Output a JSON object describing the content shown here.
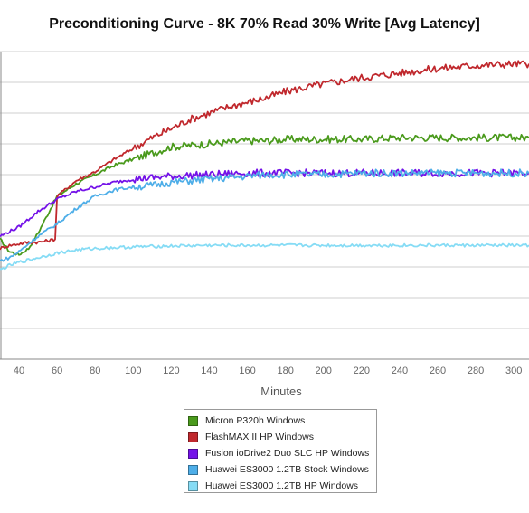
{
  "chart_data": {
    "type": "line",
    "title": "Preconditioning Curve - 8K 70% Read 30% Write [Avg Latency]",
    "xlabel": "Minutes",
    "ylabel": "",
    "x_ticks": [
      40,
      60,
      80,
      100,
      120,
      140,
      160,
      180,
      200,
      220,
      240,
      260,
      280,
      300
    ],
    "xlim": [
      30,
      308
    ],
    "ylim": [
      0,
      10
    ],
    "grid": true,
    "legend_position": "bottom-center",
    "series": [
      {
        "name": "Micron P320h Windows",
        "color": "#4a9a1c",
        "x": [
          30,
          35,
          40,
          45,
          50,
          55,
          60,
          65,
          70,
          80,
          90,
          100,
          110,
          120,
          130,
          140,
          150,
          160,
          170,
          180,
          200,
          220,
          240,
          260,
          280,
          300,
          308
        ],
        "y": [
          3.9,
          3.5,
          3.4,
          3.6,
          4.1,
          4.7,
          5.3,
          5.5,
          5.7,
          6.0,
          6.3,
          6.5,
          6.7,
          6.9,
          6.95,
          7.0,
          7.05,
          7.1,
          7.1,
          7.15,
          7.15,
          7.15,
          7.2,
          7.2,
          7.2,
          7.2,
          7.2
        ]
      },
      {
        "name": "FlashMAX II HP Windows",
        "color": "#c0282d",
        "x": [
          30,
          35,
          40,
          45,
          50,
          55,
          59,
          60,
          65,
          70,
          80,
          90,
          100,
          110,
          120,
          130,
          140,
          150,
          160,
          170,
          180,
          200,
          220,
          240,
          260,
          280,
          300,
          308
        ],
        "y": [
          3.6,
          3.7,
          3.75,
          3.8,
          3.8,
          3.85,
          3.9,
          5.3,
          5.55,
          5.8,
          6.1,
          6.5,
          6.85,
          7.2,
          7.5,
          7.8,
          8.0,
          8.2,
          8.35,
          8.5,
          8.7,
          8.95,
          9.15,
          9.3,
          9.45,
          9.55,
          9.6,
          9.6
        ]
      },
      {
        "name": "Fusion ioDrive2 Duo SLC HP Windows",
        "color": "#7412e8",
        "x": [
          30,
          35,
          40,
          50,
          60,
          70,
          80,
          90,
          100,
          110,
          120,
          140,
          160,
          180,
          200,
          220,
          240,
          260,
          280,
          300,
          308
        ],
        "y": [
          4.0,
          4.15,
          4.3,
          4.8,
          5.2,
          5.45,
          5.6,
          5.75,
          5.85,
          5.9,
          5.95,
          6.0,
          6.05,
          6.05,
          6.05,
          6.05,
          6.05,
          6.05,
          6.05,
          6.05,
          6.05
        ]
      },
      {
        "name": "Huawei ES3000 1.2TB Stock Windows",
        "color": "#4eaee8",
        "x": [
          30,
          35,
          40,
          50,
          60,
          70,
          80,
          90,
          100,
          110,
          120,
          130,
          140,
          150,
          160,
          170,
          180,
          200,
          220,
          240,
          260,
          280,
          300,
          308
        ],
        "y": [
          3.2,
          3.3,
          3.5,
          4.0,
          4.4,
          4.9,
          5.3,
          5.5,
          5.6,
          5.65,
          5.75,
          5.8,
          5.85,
          5.9,
          5.95,
          6.0,
          6.0,
          6.0,
          6.05,
          6.05,
          6.05,
          6.05,
          6.05,
          6.05
        ]
      },
      {
        "name": "Huawei ES3000 1.2TB HP Windows",
        "color": "#86dcf5",
        "x": [
          30,
          35,
          40,
          50,
          60,
          70,
          80,
          100,
          120,
          140,
          160,
          180,
          200,
          220,
          240,
          260,
          280,
          300,
          308
        ],
        "y": [
          2.9,
          3.05,
          3.15,
          3.3,
          3.45,
          3.55,
          3.6,
          3.65,
          3.68,
          3.7,
          3.7,
          3.7,
          3.7,
          3.7,
          3.7,
          3.7,
          3.7,
          3.7,
          3.7
        ]
      }
    ]
  }
}
